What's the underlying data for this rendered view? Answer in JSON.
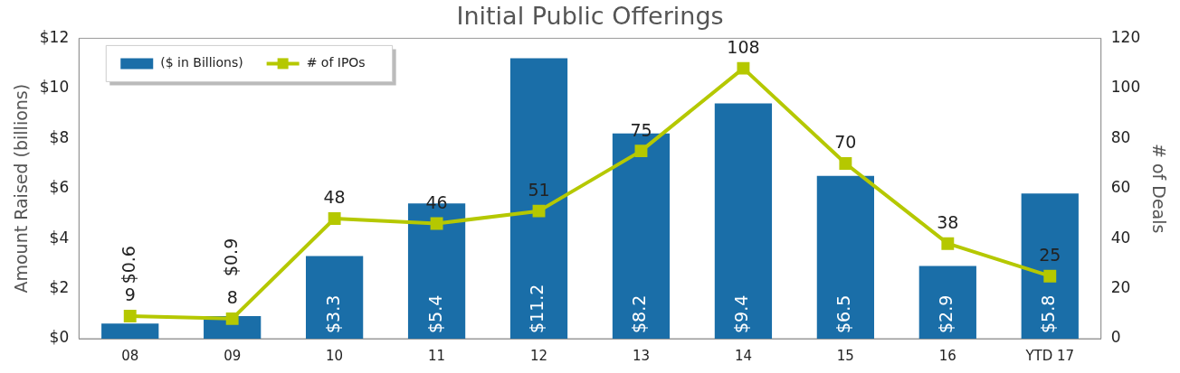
{
  "chart_data": {
    "type": "bar",
    "title": "Initial Public Offerings",
    "ylabel": "Amount Raised (billions)",
    "y2label": "# of Deals",
    "categories": [
      "08",
      "09",
      "10",
      "11",
      "12",
      "13",
      "14",
      "15",
      "16",
      "YTD 17"
    ],
    "series": [
      {
        "name": "($ in Billions)",
        "color": "#1a6ea8",
        "values": [
          0.6,
          0.9,
          3.3,
          5.4,
          11.2,
          8.2,
          9.4,
          6.5,
          2.9,
          5.8
        ],
        "value_labels": [
          "$0.6",
          "$0.9",
          "$3.3",
          "$5.4",
          "$11.2",
          "$8.2",
          "$9.4",
          "$6.5",
          "$2.9",
          "$5.8"
        ]
      },
      {
        "name": "# of IPOs",
        "type": "line",
        "axis": "y2",
        "color": "#b5c800",
        "marker": "square",
        "values": [
          9,
          8,
          48,
          46,
          51,
          75,
          108,
          70,
          38,
          25
        ],
        "value_labels": [
          "9",
          "8",
          "48",
          "46",
          "51",
          "75",
          "108",
          "70",
          "38",
          "25"
        ]
      }
    ],
    "ylim": [
      0,
      12
    ],
    "yticks": [
      {
        "value": 0,
        "label": "$0"
      },
      {
        "value": 2,
        "label": "$2"
      },
      {
        "value": 4,
        "label": "$4"
      },
      {
        "value": 6,
        "label": "$6"
      },
      {
        "value": 8,
        "label": "$8"
      },
      {
        "value": 10,
        "label": "$10"
      },
      {
        "value": 12,
        "label": "$12"
      }
    ],
    "y2lim": [
      0,
      120
    ],
    "y2ticks": [
      0,
      20,
      40,
      60,
      80,
      100,
      120
    ],
    "grid": false,
    "legend": "top left"
  }
}
